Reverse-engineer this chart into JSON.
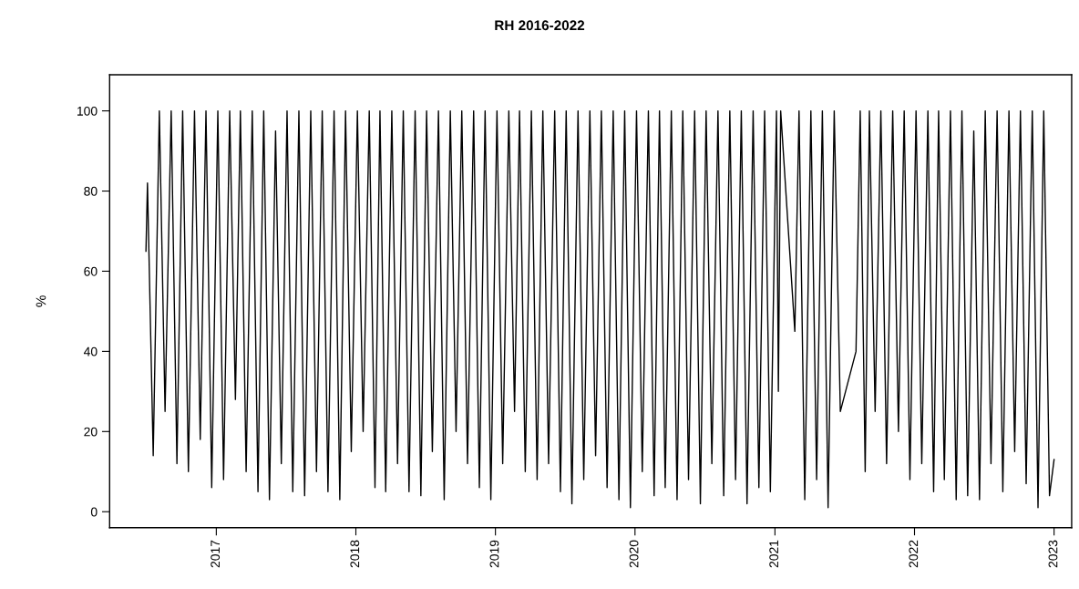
{
  "chart_data": {
    "type": "line",
    "title": "RH 2016-2022",
    "ylabel": "%",
    "xlim": [
      "2016-03-28",
      "2023-02-16"
    ],
    "ylim": [
      -4,
      109
    ],
    "xticks": [
      {
        "value": "2017-01-01",
        "label": "2017"
      },
      {
        "value": "2018-01-01",
        "label": "2018"
      },
      {
        "value": "2019-01-01",
        "label": "2019"
      },
      {
        "value": "2020-01-01",
        "label": "2020"
      },
      {
        "value": "2021-01-01",
        "label": "2021"
      },
      {
        "value": "2022-01-01",
        "label": "2022"
      },
      {
        "value": "2023-01-01",
        "label": "2023"
      }
    ],
    "yticks": [
      0,
      20,
      40,
      60,
      80,
      100
    ],
    "grid": false,
    "legend": false,
    "marker": "none",
    "line_style": "solid",
    "series": [
      {
        "color": "#000000",
        "x": [
          "2016-07-01",
          "2016-07-05",
          "2016-07-20",
          "2016-08-05",
          "2016-08-20",
          "2016-09-05",
          "2016-09-20",
          "2016-10-05",
          "2016-10-20",
          "2016-11-05",
          "2016-11-20",
          "2016-12-05",
          "2016-12-20",
          "2017-01-05",
          "2017-01-20",
          "2017-02-05",
          "2017-02-20",
          "2017-03-05",
          "2017-03-20",
          "2017-04-05",
          "2017-04-20",
          "2017-05-05",
          "2017-05-20",
          "2017-06-05",
          "2017-06-20",
          "2017-07-05",
          "2017-07-20",
          "2017-08-05",
          "2017-08-20",
          "2017-09-05",
          "2017-09-20",
          "2017-10-05",
          "2017-10-20",
          "2017-11-05",
          "2017-11-20",
          "2017-12-05",
          "2017-12-20",
          "2018-01-05",
          "2018-01-20",
          "2018-02-05",
          "2018-02-20",
          "2018-03-05",
          "2018-03-20",
          "2018-04-05",
          "2018-04-20",
          "2018-05-05",
          "2018-05-20",
          "2018-06-05",
          "2018-06-20",
          "2018-07-05",
          "2018-07-20",
          "2018-08-05",
          "2018-08-20",
          "2018-09-05",
          "2018-09-20",
          "2018-10-05",
          "2018-10-20",
          "2018-11-05",
          "2018-11-20",
          "2018-12-05",
          "2018-12-20",
          "2019-01-05",
          "2019-01-20",
          "2019-02-05",
          "2019-02-20",
          "2019-03-05",
          "2019-03-20",
          "2019-04-05",
          "2019-04-20",
          "2019-05-05",
          "2019-05-20",
          "2019-06-05",
          "2019-06-20",
          "2019-07-05",
          "2019-07-20",
          "2019-08-05",
          "2019-08-20",
          "2019-09-05",
          "2019-09-20",
          "2019-10-05",
          "2019-10-20",
          "2019-11-05",
          "2019-11-20",
          "2019-12-05",
          "2019-12-20",
          "2020-01-05",
          "2020-01-20",
          "2020-02-05",
          "2020-02-20",
          "2020-03-05",
          "2020-03-20",
          "2020-04-05",
          "2020-04-20",
          "2020-05-05",
          "2020-05-20",
          "2020-06-05",
          "2020-06-20",
          "2020-07-05",
          "2020-07-20",
          "2020-08-05",
          "2020-08-20",
          "2020-09-05",
          "2020-09-20",
          "2020-10-05",
          "2020-10-20",
          "2020-11-05",
          "2020-11-20",
          "2020-12-05",
          "2020-12-20",
          "2021-01-05",
          "2021-01-10",
          "2021-01-16",
          "2021-02-22",
          "2021-03-05",
          "2021-03-20",
          "2021-04-05",
          "2021-04-20",
          "2021-05-05",
          "2021-05-20",
          "2021-06-05",
          "2021-06-21",
          "2021-08-01",
          "2021-08-12",
          "2021-08-25",
          "2021-09-05",
          "2021-09-20",
          "2021-10-05",
          "2021-10-20",
          "2021-11-05",
          "2021-11-20",
          "2021-12-05",
          "2021-12-20",
          "2022-01-05",
          "2022-01-20",
          "2022-02-05",
          "2022-02-20",
          "2022-03-05",
          "2022-03-20",
          "2022-04-05",
          "2022-04-20",
          "2022-05-05",
          "2022-05-20",
          "2022-06-05",
          "2022-06-20",
          "2022-07-05",
          "2022-07-20",
          "2022-08-05",
          "2022-08-20",
          "2022-09-05",
          "2022-09-20",
          "2022-10-05",
          "2022-10-20",
          "2022-11-05",
          "2022-11-20",
          "2022-12-05",
          "2022-12-20",
          "2023-01-01"
        ],
        "values": [
          65,
          82,
          14,
          100,
          25,
          100,
          12,
          100,
          10,
          100,
          18,
          100,
          6,
          100,
          8,
          100,
          28,
          100,
          10,
          100,
          5,
          100,
          3,
          95,
          12,
          100,
          5,
          100,
          4,
          100,
          10,
          100,
          5,
          100,
          3,
          100,
          15,
          100,
          20,
          100,
          6,
          100,
          5,
          100,
          12,
          100,
          5,
          100,
          4,
          100,
          15,
          100,
          3,
          100,
          20,
          100,
          12,
          100,
          6,
          100,
          3,
          100,
          12,
          100,
          25,
          100,
          10,
          100,
          8,
          100,
          12,
          100,
          5,
          100,
          2,
          100,
          8,
          100,
          14,
          100,
          6,
          100,
          3,
          100,
          1,
          100,
          10,
          100,
          4,
          100,
          6,
          100,
          3,
          100,
          8,
          100,
          2,
          100,
          12,
          100,
          4,
          100,
          8,
          100,
          2,
          100,
          6,
          100,
          5,
          100,
          30,
          100,
          45,
          100,
          3,
          100,
          8,
          100,
          1,
          100,
          25,
          40,
          100,
          10,
          100,
          25,
          100,
          12,
          100,
          20,
          100,
          8,
          100,
          12,
          100,
          5,
          100,
          8,
          100,
          3,
          100,
          4,
          95,
          3,
          100,
          12,
          100,
          5,
          100,
          15,
          100,
          7,
          100,
          1,
          100,
          4,
          13
        ]
      }
    ]
  }
}
